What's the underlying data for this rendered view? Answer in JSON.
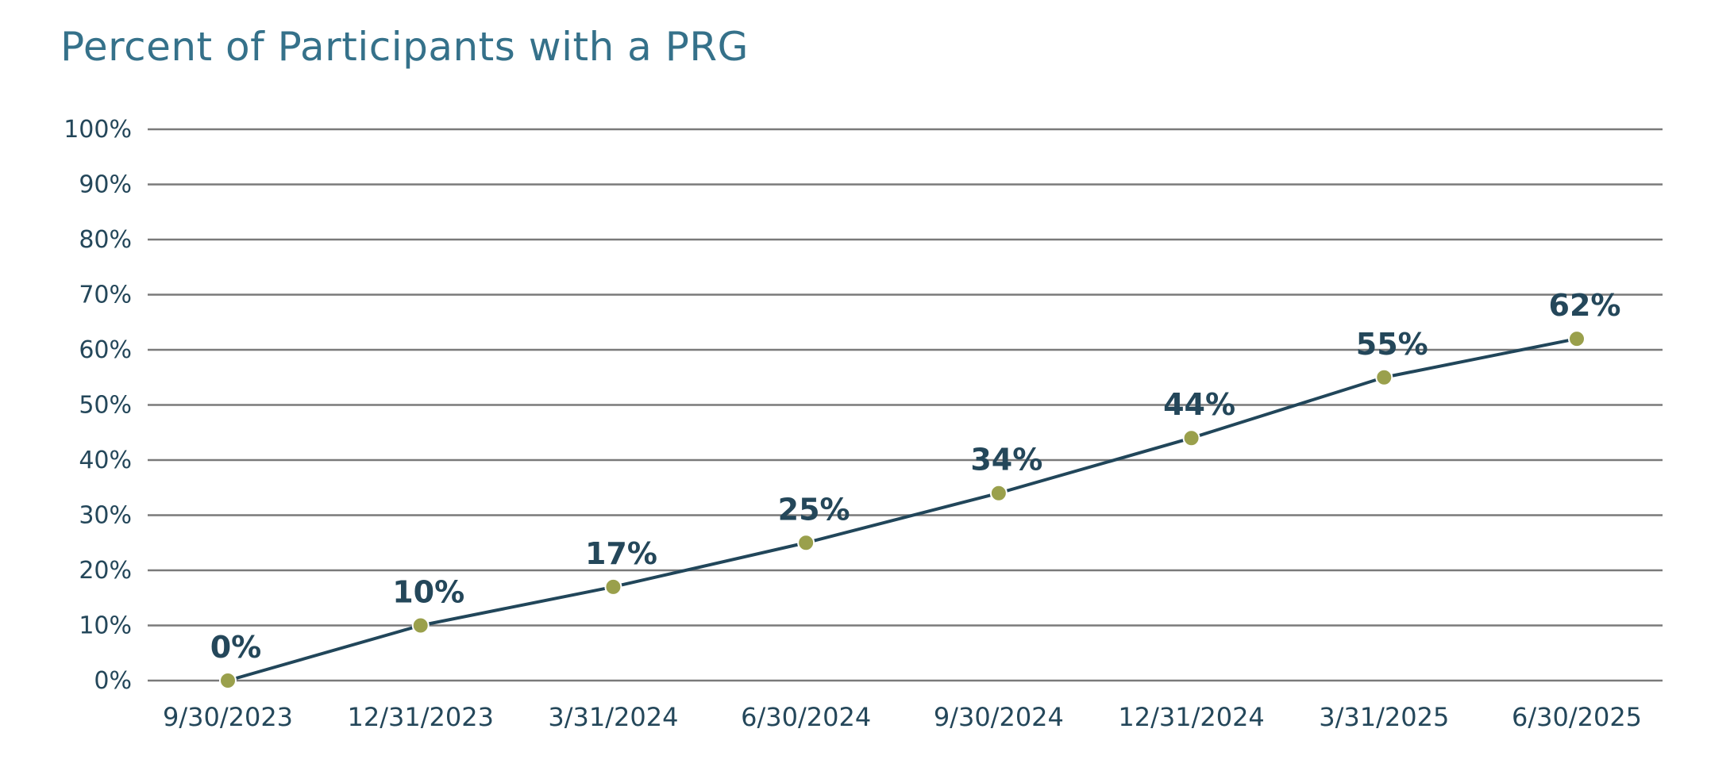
{
  "title": "Percent of Participants with a PRG",
  "colors": {
    "title": "#35718a",
    "text": "#24475a",
    "line": "#21465a",
    "marker": "#9aa04c",
    "grid": "#7a7a7a"
  },
  "chart_data": {
    "type": "line",
    "title": "Percent of Participants with a PRG",
    "xlabel": "",
    "ylabel": "",
    "categories": [
      "9/30/2023",
      "12/31/2023",
      "3/31/2024",
      "6/30/2024",
      "9/30/2024",
      "12/31/2024",
      "3/31/2025",
      "6/30/2025"
    ],
    "series": [
      {
        "values": [
          0,
          10,
          17,
          25,
          34,
          44,
          55,
          62
        ],
        "labels": [
          "0%",
          "10%",
          "17%",
          "25%",
          "34%",
          "44%",
          "55%",
          "62%"
        ]
      }
    ],
    "ylim": [
      0,
      100
    ],
    "yticks": [
      0,
      10,
      20,
      30,
      40,
      50,
      60,
      70,
      80,
      90,
      100
    ],
    "ytick_labels": [
      "0%",
      "10%",
      "20%",
      "30%",
      "40%",
      "50%",
      "60%",
      "70%",
      "80%",
      "90%",
      "100%"
    ],
    "grid": true,
    "legend": "none"
  }
}
